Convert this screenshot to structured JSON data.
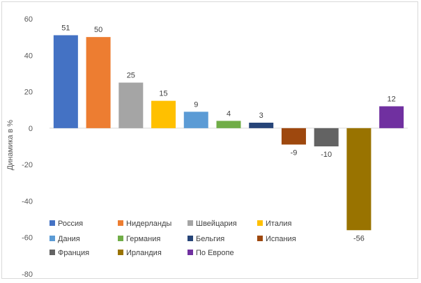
{
  "chart_data": {
    "type": "bar",
    "categories": [
      "Россия",
      "Нидерланды",
      "Швейцария",
      "Италия",
      "Дания",
      "Германия",
      "Бельгия",
      "Испания",
      "Франция",
      "Ирландия",
      "По Европе"
    ],
    "values": [
      51,
      50,
      25,
      15,
      9,
      4,
      3,
      -9,
      -10,
      -56,
      12
    ],
    "data_labels": [
      "51",
      "50",
      "25",
      "15",
      "9",
      "4",
      "3",
      "-9",
      "-10",
      "-56",
      "12"
    ],
    "colors": [
      "#4472C4",
      "#ED7D31",
      "#A5A5A5",
      "#FFC000",
      "#5B9BD5",
      "#70AD47",
      "#264478",
      "#9E480E",
      "#636363",
      "#997300",
      "#7030A0"
    ],
    "ylabel": "Динамика в %",
    "ylim": [
      -80,
      60
    ],
    "y_ticks": [
      60,
      40,
      20,
      0,
      -20,
      -40,
      -60,
      -80
    ],
    "y_tick_labels": [
      "60",
      "40",
      "20",
      "0",
      "-20",
      "-40",
      "-60",
      "-80"
    ],
    "grid": false,
    "legend_placement": "bottom-left"
  }
}
